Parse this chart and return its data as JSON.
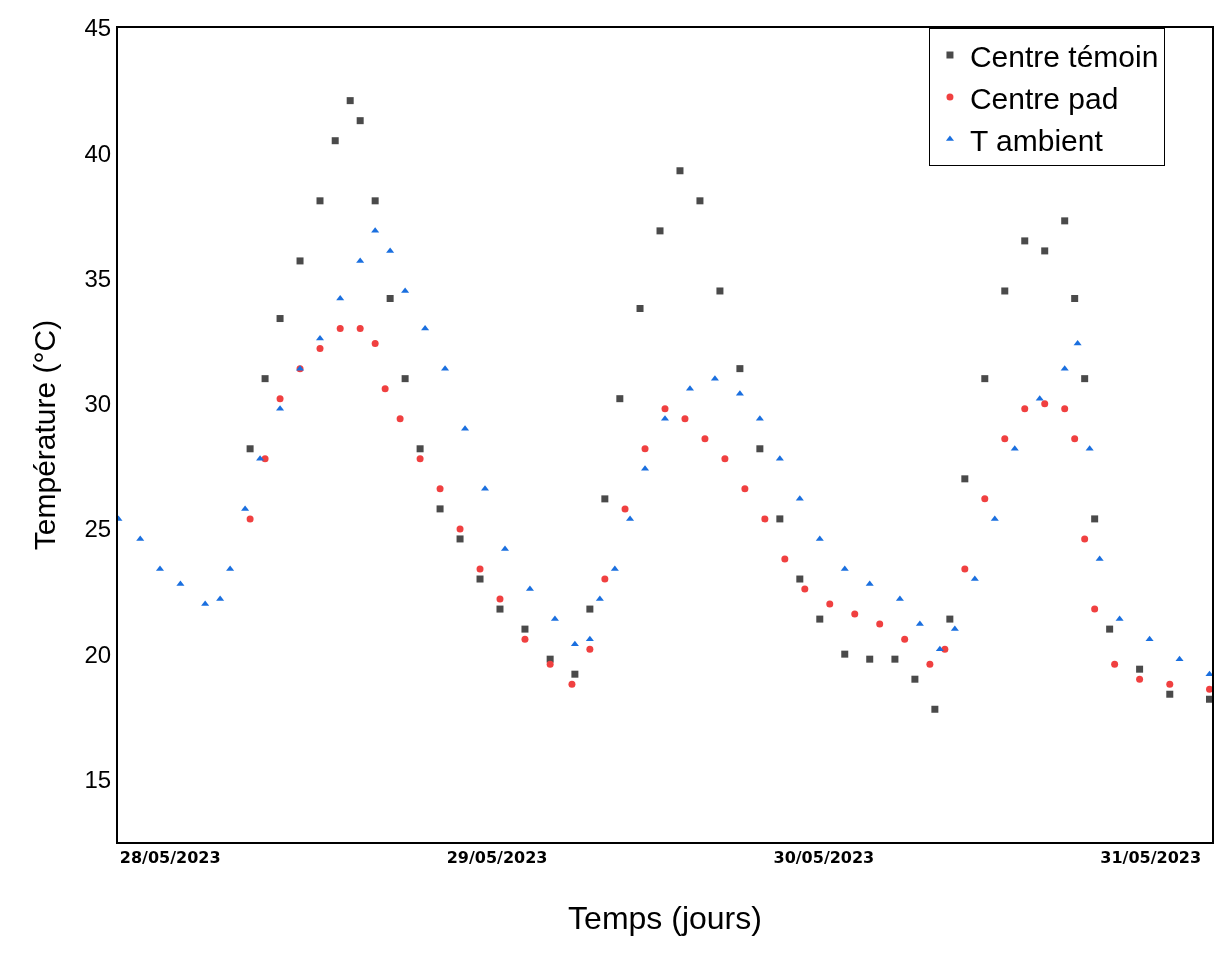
{
  "chart_data": {
    "type": "scatter",
    "xlabel": "Temps (jours)",
    "ylabel": "Température (°C)",
    "xlim": [
      "2023-05-27T20:10",
      "2023-05-31T04:30"
    ],
    "ylim": [
      12.5,
      45
    ],
    "xticks": [
      {
        "value": "2023-05-28",
        "label": "28/05/2023"
      },
      {
        "value": "2023-05-29",
        "label": "29/05/2023"
      },
      {
        "value": "2023-05-30",
        "label": "30/05/2023"
      },
      {
        "value": "2023-05-31",
        "label": "31/05/2023"
      }
    ],
    "yticks": [
      15,
      20,
      25,
      30,
      35,
      40,
      45
    ],
    "grid": false,
    "legend": "top right",
    "series": [
      {
        "name": "Centre témoin",
        "color": "#4a4a4a",
        "marker": "square",
        "x": [
          "2023-05-28T05:52",
          "2023-05-28T06:58",
          "2023-05-28T08:04",
          "2023-05-28T09:32",
          "2023-05-28T11:00",
          "2023-05-28T12:07",
          "2023-05-28T13:13",
          "2023-05-28T13:57",
          "2023-05-28T15:03",
          "2023-05-28T16:09",
          "2023-05-28T17:15",
          "2023-05-28T18:21",
          "2023-05-28T19:49",
          "2023-05-28T21:17",
          "2023-05-28T22:45",
          "2023-05-29T00:13",
          "2023-05-29T02:03",
          "2023-05-29T03:54",
          "2023-05-29T05:43",
          "2023-05-29T06:49",
          "2023-05-29T07:55",
          "2023-05-29T09:01",
          "2023-05-29T10:30",
          "2023-05-29T11:58",
          "2023-05-29T13:26",
          "2023-05-29T14:54",
          "2023-05-29T16:22",
          "2023-05-29T17:50",
          "2023-05-29T19:18",
          "2023-05-29T20:46",
          "2023-05-29T22:14",
          "2023-05-29T23:42",
          "2023-05-30T01:32",
          "2023-05-30T03:22",
          "2023-05-30T05:13",
          "2023-05-30T06:41",
          "2023-05-30T08:09",
          "2023-05-30T09:15",
          "2023-05-30T10:21",
          "2023-05-30T11:49",
          "2023-05-30T13:17",
          "2023-05-30T14:45",
          "2023-05-30T16:13",
          "2023-05-30T17:41",
          "2023-05-30T18:25",
          "2023-05-30T19:09",
          "2023-05-30T19:53",
          "2023-05-30T20:59",
          "2023-05-30T23:11",
          "2023-05-31T01:24",
          "2023-05-31T04:19"
        ],
        "values": [
          28.2,
          31.0,
          33.4,
          35.7,
          38.1,
          40.5,
          42.1,
          41.3,
          38.1,
          34.2,
          31.0,
          28.2,
          25.8,
          24.6,
          23.0,
          21.8,
          21.0,
          19.8,
          19.2,
          21.8,
          26.2,
          30.2,
          33.8,
          36.9,
          39.3,
          38.1,
          34.5,
          31.4,
          28.2,
          25.4,
          23.0,
          21.4,
          20.0,
          19.8,
          19.8,
          19.0,
          17.8,
          21.4,
          27.0,
          31.0,
          34.5,
          36.5,
          36.1,
          37.3,
          34.2,
          31.0,
          25.4,
          21.0,
          19.4,
          18.4,
          18.2
        ]
      },
      {
        "name": "Centre pad",
        "color": "#f04040",
        "marker": "circle",
        "x": [
          "2023-05-28T05:52",
          "2023-05-28T06:58",
          "2023-05-28T08:04",
          "2023-05-28T09:32",
          "2023-05-28T11:00",
          "2023-05-28T12:29",
          "2023-05-28T13:57",
          "2023-05-28T15:03",
          "2023-05-28T15:47",
          "2023-05-28T16:53",
          "2023-05-28T18:21",
          "2023-05-28T19:49",
          "2023-05-28T21:17",
          "2023-05-28T22:45",
          "2023-05-29T00:13",
          "2023-05-29T02:03",
          "2023-05-29T03:54",
          "2023-05-29T05:30",
          "2023-05-29T06:49",
          "2023-05-29T07:55",
          "2023-05-29T09:24",
          "2023-05-29T10:52",
          "2023-05-29T12:20",
          "2023-05-29T13:48",
          "2023-05-29T15:16",
          "2023-05-29T16:44",
          "2023-05-29T18:12",
          "2023-05-29T19:40",
          "2023-05-29T21:08",
          "2023-05-29T22:36",
          "2023-05-30T00:26",
          "2023-05-30T02:16",
          "2023-05-30T04:06",
          "2023-05-30T05:56",
          "2023-05-30T07:47",
          "2023-05-30T08:53",
          "2023-05-30T10:21",
          "2023-05-30T11:49",
          "2023-05-30T13:17",
          "2023-05-30T14:45",
          "2023-05-30T16:13",
          "2023-05-30T17:41",
          "2023-05-30T18:25",
          "2023-05-30T19:09",
          "2023-05-30T19:53",
          "2023-05-30T21:21",
          "2023-05-30T23:11",
          "2023-05-31T01:24",
          "2023-05-31T04:19"
        ],
        "values": [
          25.4,
          27.8,
          30.2,
          31.4,
          32.2,
          33.0,
          33.0,
          32.4,
          30.6,
          29.4,
          27.8,
          26.6,
          25.0,
          23.4,
          22.2,
          20.6,
          19.6,
          18.8,
          20.2,
          23.0,
          25.8,
          28.2,
          29.8,
          29.4,
          28.6,
          27.8,
          26.6,
          25.4,
          23.8,
          22.6,
          22.0,
          21.6,
          21.2,
          20.6,
          19.6,
          20.2,
          23.4,
          26.2,
          28.6,
          29.8,
          30.0,
          29.8,
          28.6,
          24.6,
          21.8,
          19.6,
          19.0,
          18.8,
          18.6
        ]
      },
      {
        "name": "T ambient",
        "color": "#1a6fdf",
        "marker": "triangle",
        "x": [
          "2023-05-27T20:12",
          "2023-05-27T21:48",
          "2023-05-27T23:15",
          "2023-05-28T00:45",
          "2023-05-28T02:34",
          "2023-05-28T03:40",
          "2023-05-28T04:24",
          "2023-05-28T05:30",
          "2023-05-28T06:36",
          "2023-05-28T08:04",
          "2023-05-28T09:32",
          "2023-05-28T11:00",
          "2023-05-28T12:29",
          "2023-05-28T13:57",
          "2023-05-28T15:03",
          "2023-05-28T16:09",
          "2023-05-28T17:15",
          "2023-05-28T18:43",
          "2023-05-28T20:11",
          "2023-05-28T21:39",
          "2023-05-28T23:07",
          "2023-05-29T00:35",
          "2023-05-29T02:25",
          "2023-05-29T04:15",
          "2023-05-29T05:43",
          "2023-05-29T06:49",
          "2023-05-29T07:33",
          "2023-05-29T08:39",
          "2023-05-29T09:46",
          "2023-05-29T10:52",
          "2023-05-29T12:20",
          "2023-05-29T14:10",
          "2023-05-29T16:00",
          "2023-05-29T17:50",
          "2023-05-29T19:18",
          "2023-05-29T20:46",
          "2023-05-29T22:14",
          "2023-05-29T23:42",
          "2023-05-30T01:32",
          "2023-05-30T03:22",
          "2023-05-30T05:35",
          "2023-05-30T07:03",
          "2023-05-30T08:31",
          "2023-05-30T09:37",
          "2023-05-30T11:05",
          "2023-05-30T12:33",
          "2023-05-30T14:01",
          "2023-05-30T15:51",
          "2023-05-30T17:41",
          "2023-05-30T18:38",
          "2023-05-30T19:31",
          "2023-05-30T20:15",
          "2023-05-30T21:43",
          "2023-05-30T23:55",
          "2023-05-31T02:07",
          "2023-05-31T04:19"
        ],
        "values": [
          25.4,
          24.6,
          23.4,
          22.8,
          22.0,
          22.2,
          23.4,
          25.8,
          27.8,
          29.8,
          31.4,
          32.6,
          34.2,
          35.7,
          36.9,
          36.1,
          34.5,
          33.0,
          31.4,
          29.0,
          26.6,
          24.2,
          22.6,
          21.4,
          20.4,
          20.6,
          22.2,
          23.4,
          25.4,
          27.4,
          29.4,
          30.6,
          31.0,
          30.4,
          29.4,
          27.8,
          26.2,
          24.6,
          23.4,
          22.8,
          22.2,
          21.2,
          20.2,
          21.0,
          23.0,
          25.4,
          28.2,
          30.2,
          31.4,
          32.4,
          28.2,
          23.8,
          21.4,
          20.6,
          19.8,
          19.2
        ]
      }
    ]
  }
}
